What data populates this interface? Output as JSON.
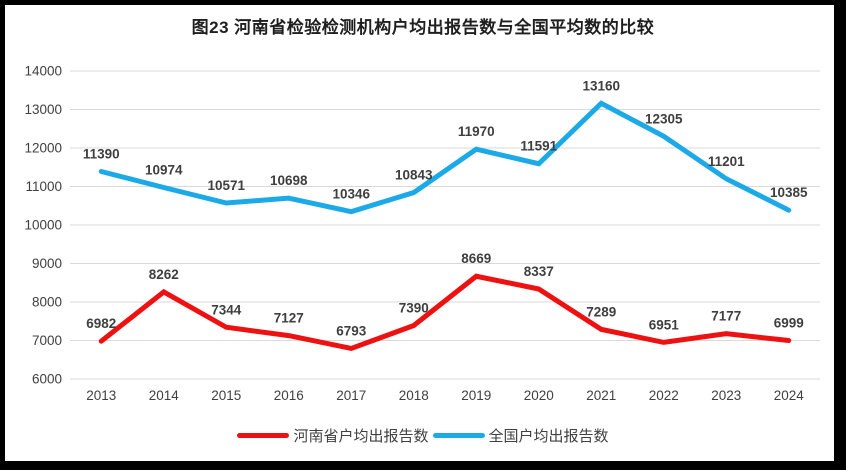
{
  "chart_title": "图23  河南省检验检测机构户均出报告数与全国平均数的比较",
  "chart_data": {
    "type": "line",
    "title": "图23  河南省检验检测机构户均出报告数与全国平均数的比较",
    "categories": [
      "2013",
      "2014",
      "2015",
      "2016",
      "2017",
      "2018",
      "2019",
      "2020",
      "2021",
      "2022",
      "2023",
      "2024"
    ],
    "series": [
      {
        "name": "河南省户均出报告数",
        "color": "#ee1111",
        "values": [
          6982,
          8262,
          7344,
          7127,
          6793,
          7390,
          8669,
          8337,
          7289,
          6951,
          7177,
          6999
        ]
      },
      {
        "name": "全国户均出报告数",
        "color": "#1ca9e8",
        "values": [
          11390,
          10974,
          10571,
          10698,
          10346,
          10843,
          11970,
          11591,
          13160,
          12305,
          11201,
          10385
        ]
      }
    ],
    "xlabel": "",
    "ylabel": "",
    "ylim": [
      6000,
      14000
    ],
    "ytick_step": 1000,
    "yticks": [
      "6000",
      "7000",
      "8000",
      "9000",
      "10000",
      "11000",
      "12000",
      "13000",
      "14000"
    ],
    "grid": true,
    "grid_color": "#d9d9d9",
    "data_labels": true,
    "label_color": "#3f3f3f",
    "legend_position": "bottom",
    "frame_border_color": "#000000",
    "background_color": "#ffffff"
  }
}
